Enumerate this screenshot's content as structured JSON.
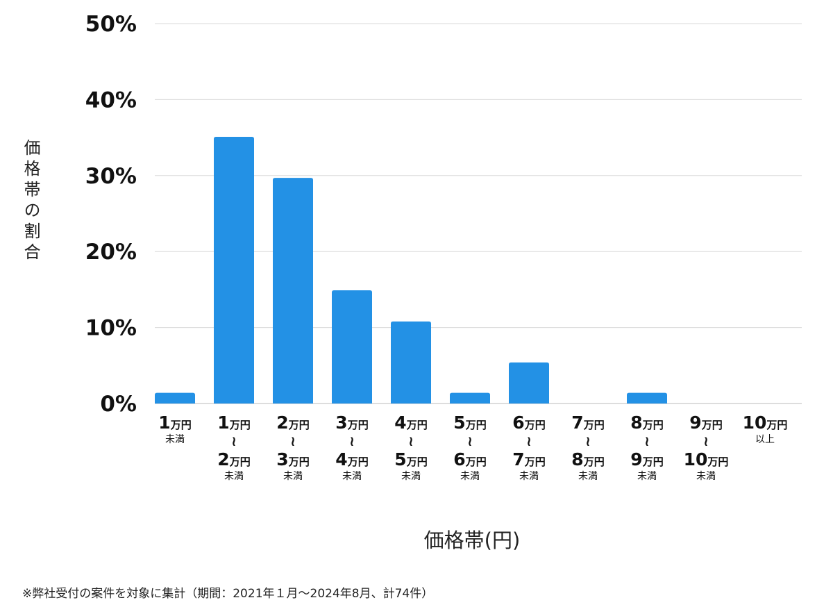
{
  "chart_data": {
    "type": "bar",
    "categories": [
      {
        "from": [
          "1",
          "万円"
        ],
        "to": null,
        "suffix": "未満"
      },
      {
        "from": [
          "1",
          "万円"
        ],
        "to": [
          "2",
          "万円"
        ],
        "suffix": "未満"
      },
      {
        "from": [
          "2",
          "万円"
        ],
        "to": [
          "3",
          "万円"
        ],
        "suffix": "未満"
      },
      {
        "from": [
          "3",
          "万円"
        ],
        "to": [
          "4",
          "万円"
        ],
        "suffix": "未満"
      },
      {
        "from": [
          "4",
          "万円"
        ],
        "to": [
          "5",
          "万円"
        ],
        "suffix": "未満"
      },
      {
        "from": [
          "5",
          "万円"
        ],
        "to": [
          "6",
          "万円"
        ],
        "suffix": "未満"
      },
      {
        "from": [
          "6",
          "万円"
        ],
        "to": [
          "7",
          "万円"
        ],
        "suffix": "未満"
      },
      {
        "from": [
          "7",
          "万円"
        ],
        "to": [
          "8",
          "万円"
        ],
        "suffix": "未満"
      },
      {
        "from": [
          "8",
          "万円"
        ],
        "to": [
          "9",
          "万円"
        ],
        "suffix": "未満"
      },
      {
        "from": [
          "9",
          "万円"
        ],
        "to": [
          "10",
          "万円"
        ],
        "suffix": "未満"
      },
      {
        "from": [
          "10",
          "万円"
        ],
        "to": null,
        "suffix": "以上"
      }
    ],
    "range_symbol": "≀",
    "values": [
      1.4,
      35.1,
      29.7,
      14.9,
      10.8,
      1.4,
      5.4,
      0,
      1.4,
      0,
      0
    ],
    "ylim": [
      0,
      50
    ],
    "yticks": [
      "0%",
      "10%",
      "20%",
      "30%",
      "40%",
      "50%"
    ],
    "ylabel": "価格帯の割合",
    "xlabel": "価格帯(円)",
    "grid": true,
    "bar_color": "#2391e5"
  },
  "footnote": "※弊社受付の案件を対象に集計（期間：2021年１月〜2024年8月、計74件）"
}
